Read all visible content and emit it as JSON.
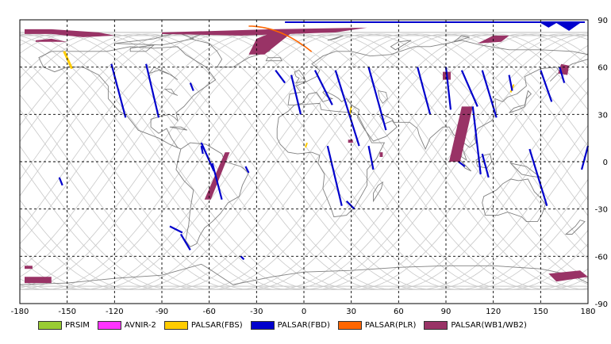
{
  "map": {
    "x_ticks": [
      "-180",
      "-150",
      "-120",
      "-90",
      "-60",
      "-30",
      "0",
      "30",
      "60",
      "90",
      "120",
      "150",
      "180"
    ],
    "y_ticks": [
      "90",
      "60",
      "30",
      "0",
      "-30",
      "-60",
      "-90"
    ],
    "colors": {
      "prsim": "#99cc33",
      "avnir2": "#ff33ff",
      "palsar_fbs": "#ffcc00",
      "palsar_fbd": "#0000cc",
      "palsar_plr": "#ff6600",
      "palsar_wb": "#993366",
      "coast": "#808080",
      "orbit": "#c8c8c8",
      "grid": "#000000"
    }
  },
  "legend": [
    {
      "label": "PRSIM",
      "color": "#99cc33"
    },
    {
      "label": "AVNIR-2",
      "color": "#ff33ff"
    },
    {
      "label": "PALSAR(FBS)",
      "color": "#ffcc00"
    },
    {
      "label": "PALSAR(FBD)",
      "color": "#0000cc"
    },
    {
      "label": "PALSAR(PLR)",
      "color": "#ff6600"
    },
    {
      "label": "PALSAR(WB1/WB2)",
      "color": "#993366"
    }
  ]
}
